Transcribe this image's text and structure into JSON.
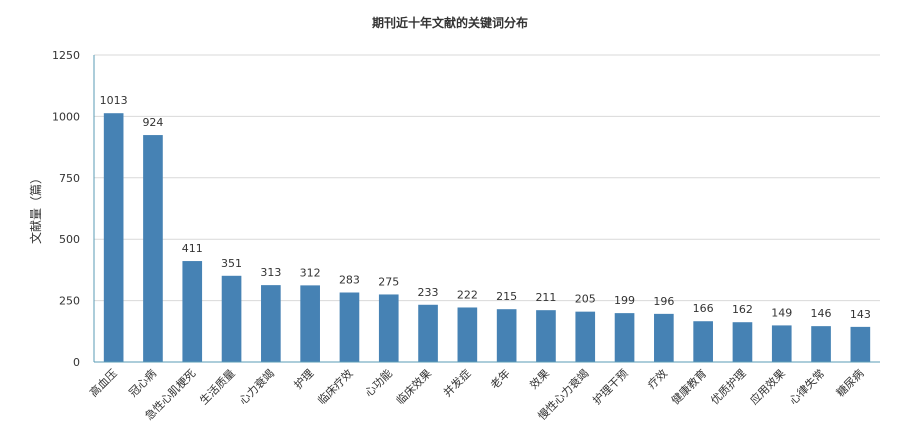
{
  "chart_data": {
    "type": "bar",
    "title": "期刊近十年文献的关键词分布",
    "ylabel": "文献量（篇）",
    "xlabel": "",
    "ylim": [
      0,
      1250
    ],
    "yticks": [
      0,
      250,
      500,
      750,
      1000,
      1250
    ],
    "grid": true,
    "legend": "none",
    "bar_color": "#4682b4",
    "categories": [
      "高血压",
      "冠心病",
      "急性心肌梗死",
      "生活质量",
      "心力衰竭",
      "护理",
      "临床疗效",
      "心功能",
      "临床效果",
      "并发症",
      "老年",
      "效果",
      "慢性心力衰竭",
      "护理干预",
      "疗效",
      "健康教育",
      "优质护理",
      "应用效果",
      "心律失常",
      "糖尿病"
    ],
    "values": [
      1013,
      924,
      411,
      351,
      313,
      312,
      283,
      275,
      233,
      222,
      215,
      211,
      205,
      199,
      196,
      166,
      162,
      149,
      146,
      143
    ]
  }
}
